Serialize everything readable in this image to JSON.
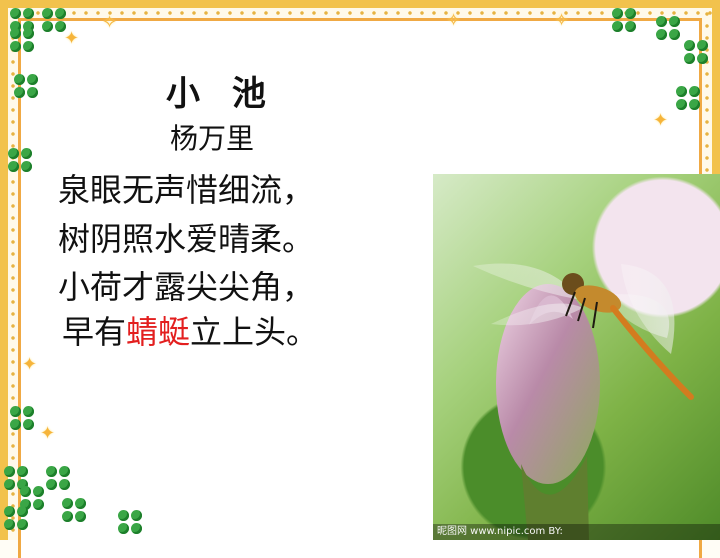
{
  "poem": {
    "title": "小 池",
    "author": "杨万里",
    "lines": [
      "泉眼无声惜细流，",
      "树阴照水爱晴柔。",
      "小荷才露尖尖角，",
      {
        "before": "早有",
        "highlight": "蜻蜓",
        "after": "立上头。"
      }
    ]
  },
  "photo": {
    "subject": "dragonfly-on-lotus-bud",
    "watermark": "昵图网 www.nipic.com BY:"
  },
  "colors": {
    "highlight": "#e31f1f",
    "border_gold": "#f2c24d",
    "clover_green": "#3aa646"
  },
  "icons": [
    "clover-icon",
    "sparkle-icon"
  ]
}
